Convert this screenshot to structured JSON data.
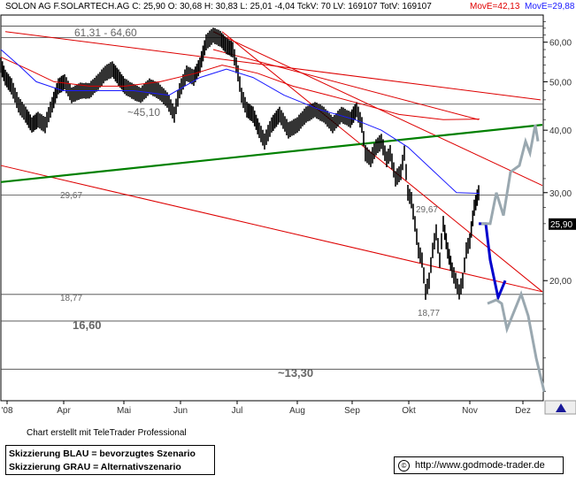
{
  "header": {
    "main": "SOLON AG F.SOLARTECH.AG C: 25,90 O: 30,68 H: 30,83 L: 25,01 -4,04 TckV: 70 LV: 169107 TotV: 169107",
    "mov_e1": "MovE=42,13",
    "mov_e2": "MovE=29,88"
  },
  "credit": "Chart erstellt mit TeleTrader Professional",
  "legend": {
    "line1": "Skizzierung BLAU = bevorzugtes Szenario",
    "line2": "Skizzierung GRAU = Alternativszenario"
  },
  "url": {
    "copyright": "©",
    "text": "http://www.godmode-trader.de"
  },
  "colors": {
    "ema_red": "#e00000",
    "ema_blue": "#1a1aff",
    "trend_red": "#dd0000",
    "trend_green": "#008000",
    "scenario_blue": "#0000cc",
    "scenario_grey": "#9aa8b0"
  },
  "chart_data": {
    "type": "line",
    "y_scale": "log",
    "ylim": [
      11.5,
      68
    ],
    "y_ticks": [
      20,
      30,
      40,
      50,
      60
    ],
    "y_tick_labels": [
      "20,00",
      "30,00",
      "40,00",
      "50,00",
      "60,00"
    ],
    "x_labels": [
      "'08",
      "Apr",
      "Mai",
      "Jun",
      "Jul",
      "Aug",
      "Sep",
      "Okt",
      "Nov",
      "Dez"
    ],
    "last_price": "25,90",
    "horizontal_levels": [
      {
        "value": 64.6
      },
      {
        "value": 61.31
      },
      {
        "value": 45.1
      },
      {
        "value": 29.67
      },
      {
        "value": 18.77
      },
      {
        "value": 16.6
      },
      {
        "value": 13.3
      }
    ],
    "annotations": [
      "61,31 - 64,60",
      "~45,10",
      "29,67",
      "29,67",
      "18,77",
      "18,77",
      "16,60",
      "~13,30"
    ],
    "price_path": [
      [
        0,
        54
      ],
      [
        5,
        51
      ],
      [
        12,
        49
      ],
      [
        20,
        45
      ],
      [
        28,
        43
      ],
      [
        35,
        41
      ],
      [
        42,
        42
      ],
      [
        50,
        41
      ],
      [
        58,
        45
      ],
      [
        65,
        49
      ],
      [
        72,
        50
      ],
      [
        80,
        47
      ],
      [
        90,
        48
      ],
      [
        100,
        48
      ],
      [
        110,
        50
      ],
      [
        118,
        52
      ],
      [
        126,
        53
      ],
      [
        133,
        51
      ],
      [
        140,
        49
      ],
      [
        148,
        48
      ],
      [
        158,
        47
      ],
      [
        168,
        49
      ],
      [
        178,
        48
      ],
      [
        188,
        46
      ],
      [
        196,
        43
      ],
      [
        202,
        48
      ],
      [
        210,
        52
      ],
      [
        218,
        51
      ],
      [
        225,
        54
      ],
      [
        232,
        60
      ],
      [
        240,
        62
      ],
      [
        248,
        61
      ],
      [
        255,
        59
      ],
      [
        262,
        58
      ],
      [
        268,
        52
      ],
      [
        272,
        47
      ],
      [
        278,
        44
      ],
      [
        285,
        43
      ],
      [
        292,
        40
      ],
      [
        298,
        38
      ],
      [
        306,
        41
      ],
      [
        315,
        43
      ],
      [
        325,
        40
      ],
      [
        335,
        41
      ],
      [
        345,
        43
      ],
      [
        355,
        44
      ],
      [
        365,
        43
      ],
      [
        375,
        41
      ],
      [
        385,
        43
      ],
      [
        395,
        42
      ],
      [
        402,
        44
      ],
      [
        408,
        41
      ],
      [
        412,
        36
      ],
      [
        418,
        35
      ],
      [
        424,
        37
      ],
      [
        430,
        38
      ],
      [
        436,
        35
      ],
      [
        440,
        36
      ],
      [
        446,
        32
      ],
      [
        452,
        33
      ],
      [
        456,
        36
      ],
      [
        460,
        30
      ],
      [
        464,
        29
      ],
      [
        468,
        26
      ],
      [
        472,
        23
      ],
      [
        476,
        22
      ],
      [
        480,
        19
      ],
      [
        484,
        20
      ],
      [
        488,
        23
      ],
      [
        492,
        25
      ],
      [
        496,
        22
      ],
      [
        500,
        26
      ],
      [
        505,
        23
      ],
      [
        510,
        21
      ],
      [
        514,
        20
      ],
      [
        518,
        19
      ],
      [
        522,
        20
      ],
      [
        526,
        23
      ],
      [
        530,
        24
      ],
      [
        535,
        28
      ],
      [
        540,
        30
      ],
      [
        541,
        26
      ]
    ],
    "ema_red": [
      [
        0,
        56
      ],
      [
        30,
        53
      ],
      [
        60,
        50
      ],
      [
        100,
        49
      ],
      [
        140,
        49
      ],
      [
        180,
        50
      ],
      [
        220,
        52
      ],
      [
        250,
        54
      ],
      [
        290,
        52
      ],
      [
        330,
        49
      ],
      [
        370,
        47
      ],
      [
        410,
        45
      ],
      [
        450,
        43
      ],
      [
        500,
        42
      ],
      [
        541,
        42.1
      ]
    ],
    "ema_blue": [
      [
        0,
        58
      ],
      [
        20,
        54
      ],
      [
        40,
        50
      ],
      [
        70,
        48
      ],
      [
        110,
        48
      ],
      [
        150,
        48
      ],
      [
        190,
        47
      ],
      [
        225,
        51
      ],
      [
        255,
        53
      ],
      [
        285,
        51
      ],
      [
        320,
        47
      ],
      [
        360,
        44
      ],
      [
        400,
        42
      ],
      [
        430,
        40
      ],
      [
        460,
        37
      ],
      [
        490,
        33
      ],
      [
        515,
        30
      ],
      [
        541,
        29.9
      ]
    ],
    "trendlines": [
      {
        "color": "red",
        "from": [
          5,
          63
        ],
        "to": [
          610,
          46
        ]
      },
      {
        "color": "red",
        "from": [
          240,
          58
        ],
        "to": [
          540,
          42
        ]
      },
      {
        "color": "red",
        "from": [
          240,
          63
        ],
        "to": [
          612,
          31
        ]
      },
      {
        "color": "red",
        "from": [
          250,
          63
        ],
        "to": [
          612,
          19
        ]
      },
      {
        "color": "red",
        "from": [
          0,
          34
        ],
        "to": [
          612,
          19
        ]
      },
      {
        "color": "green",
        "from": [
          0,
          31.5
        ],
        "to": [
          612,
          41
        ]
      }
    ],
    "scenario_blue": [
      [
        540,
        26
      ],
      [
        548,
        26
      ],
      [
        553,
        22
      ],
      [
        562,
        18.5
      ],
      [
        570,
        20
      ]
    ],
    "scenario_grey_up": [
      [
        543,
        26
      ],
      [
        553,
        26
      ],
      [
        560,
        30
      ],
      [
        568,
        27
      ],
      [
        576,
        33
      ],
      [
        586,
        34
      ],
      [
        593,
        38
      ],
      [
        598,
        36
      ],
      [
        604,
        41
      ],
      [
        607,
        38
      ]
    ],
    "scenario_grey_down": [
      [
        550,
        18
      ],
      [
        560,
        18.3
      ],
      [
        566,
        18
      ],
      [
        572,
        16
      ],
      [
        578,
        17
      ],
      [
        588,
        18.8
      ],
      [
        596,
        17
      ],
      [
        605,
        14
      ],
      [
        614,
        12
      ]
    ]
  }
}
